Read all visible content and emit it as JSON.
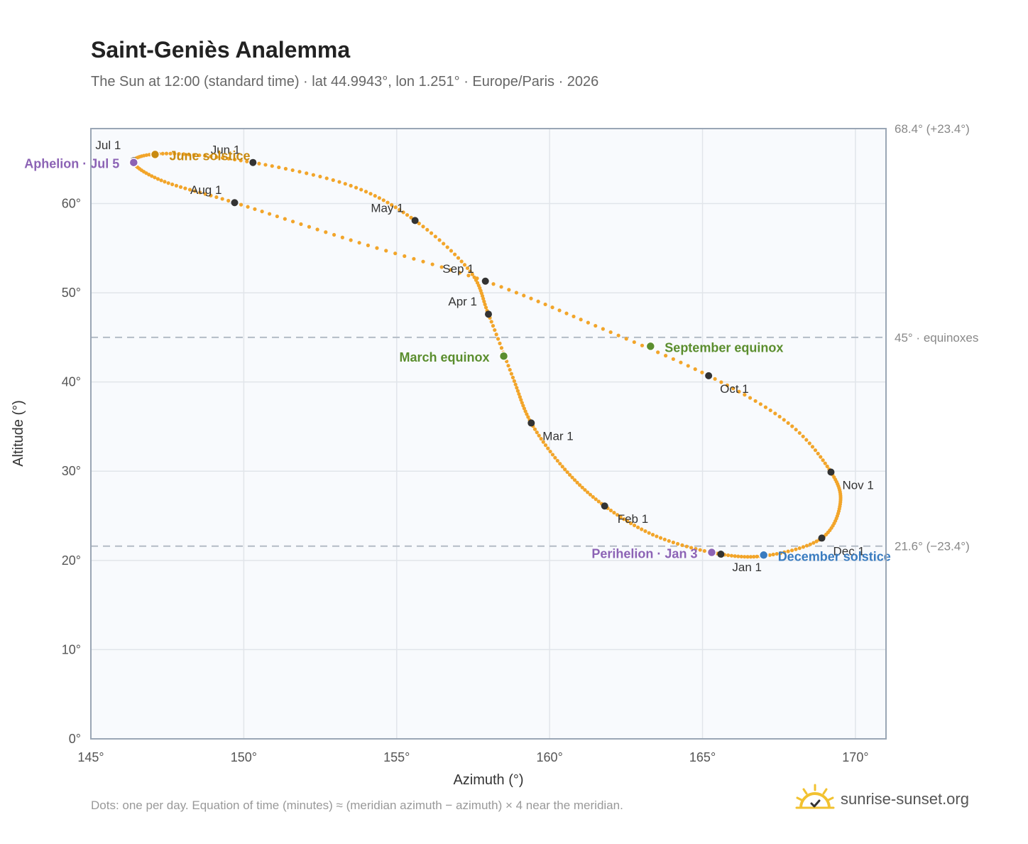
{
  "header": {
    "title": "Saint-Geniès Analemma",
    "subtitle": "The Sun at 12:00 (standard time) · lat 44.9943°, lon 1.251° · Europe/Paris · 2026"
  },
  "footer": {
    "note": "Dots: one per day. Equation of time (minutes) ≈ (meridian azimuth − azimuth) × 4 near the meridian.",
    "brand": "sunrise-sunset.org",
    "brand_icon": "sunrise-logo-icon"
  },
  "colors": {
    "path": "#F2A52A",
    "month_marker": "#333333",
    "june_solstice": "#C98A10",
    "december_solstice": "#3A7CC0",
    "equinox": "#5B8E2E",
    "apsis": "#8C63B5",
    "plot_bg": "#F8FAFD",
    "grid": "#E1E5EA",
    "ref_line": "#B4BCC6",
    "frame": "#9AA6B5"
  },
  "chart_data": {
    "type": "scatter",
    "title": "Saint-Geniès Analemma",
    "subtitle": "The Sun at 12:00 (standard time) · lat 44.9943°, lon 1.251° · Europe/Paris · 2026",
    "xlabel": "Azimuth (°)",
    "ylabel": "Altitude (°)",
    "xlim": [
      145,
      171
    ],
    "ylim": [
      0,
      68.4
    ],
    "xticks": [
      145,
      150,
      155,
      160,
      165,
      170
    ],
    "xtick_labels": [
      "145°",
      "150°",
      "155°",
      "160°",
      "165°",
      "170°"
    ],
    "yticks": [
      0,
      10,
      20,
      30,
      40,
      50,
      60
    ],
    "ytick_labels": [
      "0°",
      "10°",
      "20°",
      "30°",
      "40°",
      "50°",
      "60°"
    ],
    "grid": true,
    "reference_lines": [
      {
        "y": 68.4,
        "label": "68.4° (+23.4°)"
      },
      {
        "y": 45,
        "label": "45° · equinoxes"
      },
      {
        "y": 21.6,
        "label": "21.6° (−23.4°)"
      }
    ],
    "series_note": "one dot per day",
    "month_markers": [
      {
        "label": "Jan 1",
        "x": 165.6,
        "y": 20.7
      },
      {
        "label": "Feb 1",
        "x": 161.8,
        "y": 26.1
      },
      {
        "label": "Mar 1",
        "x": 159.4,
        "y": 35.4
      },
      {
        "label": "Apr 1",
        "x": 158.0,
        "y": 47.6
      },
      {
        "label": "May 1",
        "x": 155.6,
        "y": 58.1
      },
      {
        "label": "Jun 1",
        "x": 150.3,
        "y": 64.6
      },
      {
        "label": "Jul 1",
        "x": 146.4,
        "y": 64.8
      },
      {
        "label": "Aug 1",
        "x": 149.7,
        "y": 60.1
      },
      {
        "label": "Sep 1",
        "x": 157.9,
        "y": 51.3
      },
      {
        "label": "Oct 1",
        "x": 165.2,
        "y": 40.7
      },
      {
        "label": "Nov 1",
        "x": 169.2,
        "y": 29.9
      },
      {
        "label": "Dec 1",
        "x": 168.9,
        "y": 22.5
      }
    ],
    "events": [
      {
        "label": "June solstice",
        "x": 147.1,
        "y": 65.5,
        "color_key": "june_solstice"
      },
      {
        "label": "Aphelion · Jul 5",
        "x": 146.4,
        "y": 64.6,
        "color_key": "apsis"
      },
      {
        "label": "March equinox",
        "x": 158.5,
        "y": 42.9,
        "color_key": "equinox"
      },
      {
        "label": "September equinox",
        "x": 163.3,
        "y": 44.0,
        "color_key": "equinox"
      },
      {
        "label": "Perihelion · Jan 3",
        "x": 165.3,
        "y": 20.9,
        "color_key": "apsis"
      },
      {
        "label": "December solstice",
        "x": 167.0,
        "y": 20.6,
        "color_key": "december_solstice"
      }
    ],
    "path_knots": [
      [
        165.6,
        20.7
      ],
      [
        163.5,
        22.7
      ],
      [
        161.8,
        26.1
      ],
      [
        160.5,
        30.2
      ],
      [
        159.4,
        35.4
      ],
      [
        158.8,
        40.5
      ],
      [
        158.0,
        47.6
      ],
      [
        157.4,
        52.4
      ],
      [
        155.6,
        58.1
      ],
      [
        153.5,
        62.0
      ],
      [
        150.3,
        64.6
      ],
      [
        147.6,
        65.6
      ],
      [
        146.4,
        64.8
      ],
      [
        147.3,
        62.6
      ],
      [
        149.7,
        60.1
      ],
      [
        153.5,
        55.9
      ],
      [
        157.9,
        51.3
      ],
      [
        161.5,
        46.3
      ],
      [
        165.2,
        40.7
      ],
      [
        167.8,
        35.4
      ],
      [
        169.2,
        29.9
      ],
      [
        169.5,
        26.3
      ],
      [
        168.9,
        22.5
      ],
      [
        167.2,
        20.6
      ],
      [
        165.6,
        20.7
      ]
    ]
  }
}
